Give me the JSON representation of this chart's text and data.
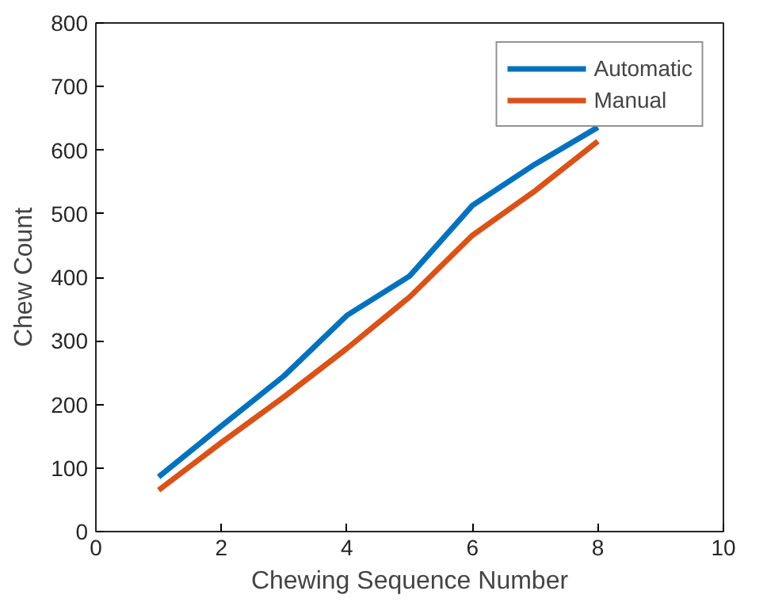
{
  "chart_data": {
    "type": "line",
    "xlabel": "Chewing Sequence Number",
    "ylabel": "Chew Count",
    "x": [
      1,
      2,
      3,
      4,
      5,
      6,
      7,
      8
    ],
    "series": [
      {
        "name": "Automatic",
        "color": "#0072bd",
        "values": [
          86,
          166,
          245,
          340,
          402,
          513,
          578,
          636
        ]
      },
      {
        "name": "Manual",
        "color": "#d95319",
        "values": [
          65,
          140,
          212,
          288,
          369,
          466,
          536,
          614
        ]
      }
    ],
    "xlim": [
      0,
      10
    ],
    "xticks": [
      0,
      2,
      4,
      6,
      8,
      10
    ],
    "ylim": [
      0,
      800
    ],
    "yticks": [
      0,
      100,
      200,
      300,
      400,
      500,
      600,
      700,
      800
    ],
    "grid": false,
    "legend": "top right",
    "marker": "none",
    "line_style": "solid"
  }
}
